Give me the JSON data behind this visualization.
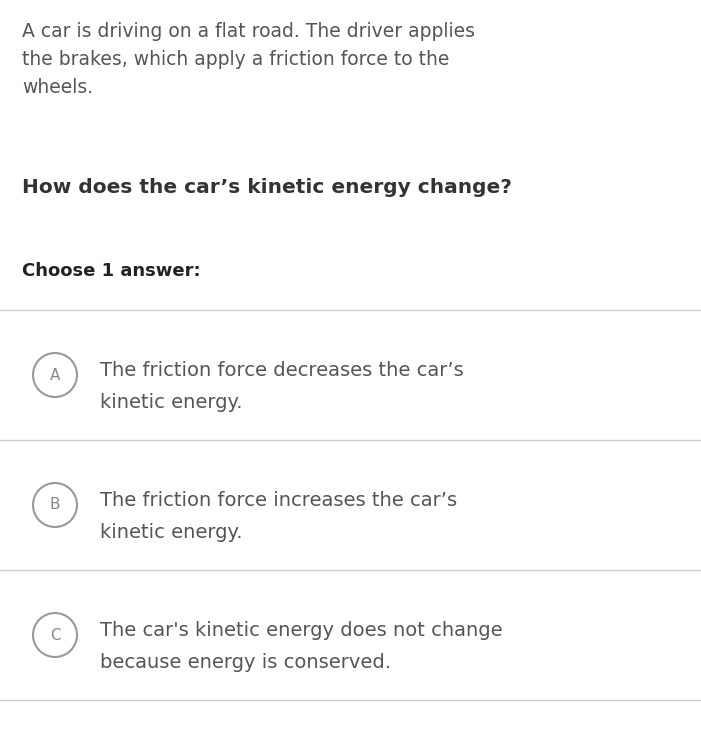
{
  "background_color": "#ffffff",
  "intro_text": "A car is driving on a flat road. The driver applies\nthe brakes, which apply a friction force to the\nwheels.",
  "question_text": "How does the car’s kinetic energy change?",
  "choose_text": "Choose 1 answer:",
  "answers": [
    {
      "label": "A",
      "line1": "The friction force decreases the car’s",
      "line2": "kinetic energy."
    },
    {
      "label": "B",
      "line1": "The friction force increases the car’s",
      "line2": "kinetic energy."
    },
    {
      "label": "C",
      "line1": "The car's kinetic energy does not change",
      "line2": "because energy is conserved."
    }
  ],
  "intro_color": "#555555",
  "question_color": "#333333",
  "choose_color": "#222222",
  "answer_text_color": "#555555",
  "circle_edge_color": "#999999",
  "circle_label_color": "#888888",
  "line_color": "#cccccc",
  "intro_fontsize": 13.5,
  "question_fontsize": 14.5,
  "choose_fontsize": 13,
  "answer_fontsize": 14,
  "label_fontsize": 11,
  "fig_width": 7.01,
  "fig_height": 7.53,
  "dpi": 100
}
